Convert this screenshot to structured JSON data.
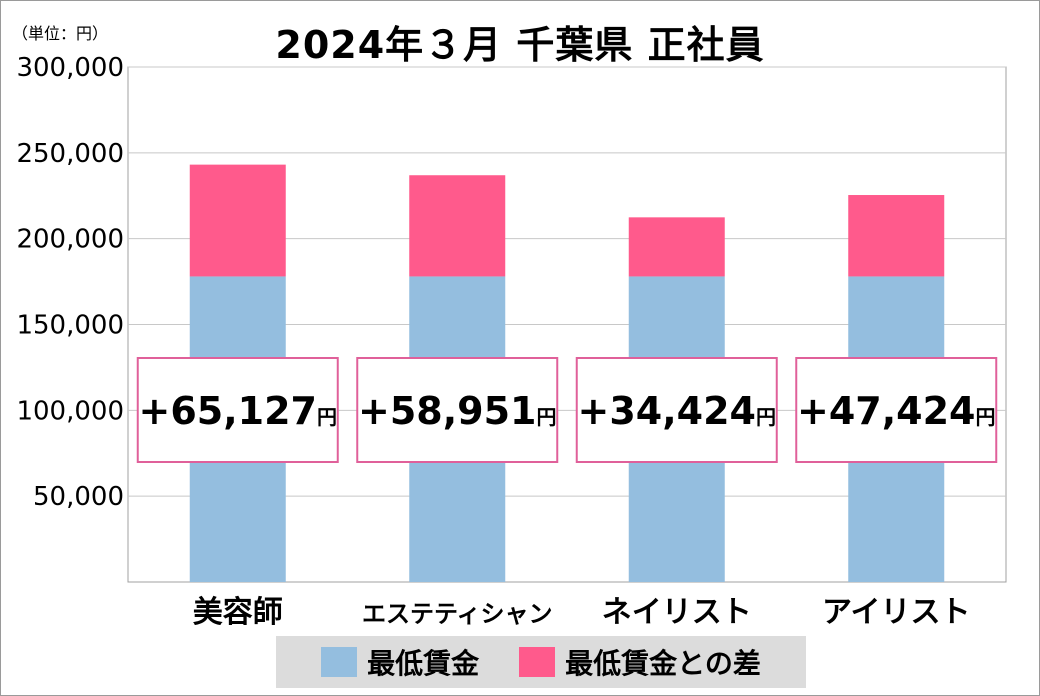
{
  "unit_label": "（単位：円）",
  "title": "2024年３月  千葉県  正社員",
  "colors": {
    "base": "#94bedf",
    "diff": "#ff5a8c",
    "callout_border": "#e0609a",
    "grid": "#c8c8c8"
  },
  "chart_data": {
    "type": "bar",
    "stacked": true,
    "categories": [
      "美容師",
      "エステティシャン",
      "ネイリスト",
      "アイリスト"
    ],
    "series": [
      {
        "name": "最低賃金",
        "values": [
          178000,
          178000,
          178000,
          178000
        ]
      },
      {
        "name": "最低賃金との差",
        "values": [
          65127,
          58951,
          34424,
          47424
        ]
      }
    ],
    "ylim": [
      0,
      300000
    ],
    "yticks": [
      50000,
      100000,
      150000,
      200000,
      250000,
      300000
    ],
    "ytick_labels": [
      "50,000",
      "100,000",
      "150,000",
      "200,000",
      "250,000",
      "300,000"
    ],
    "data_labels": [
      {
        "num": "+65,127",
        "unit": "円"
      },
      {
        "num": "+58,951",
        "unit": "円"
      },
      {
        "num": "+34,424",
        "unit": "円"
      },
      {
        "num": "+47,424",
        "unit": "円"
      }
    ],
    "grid": true,
    "legend_position": "bottom"
  },
  "legend": [
    {
      "label": "最低賃金",
      "color": "#94bedf"
    },
    {
      "label": "最低賃金との差",
      "color": "#ff5a8c"
    }
  ]
}
